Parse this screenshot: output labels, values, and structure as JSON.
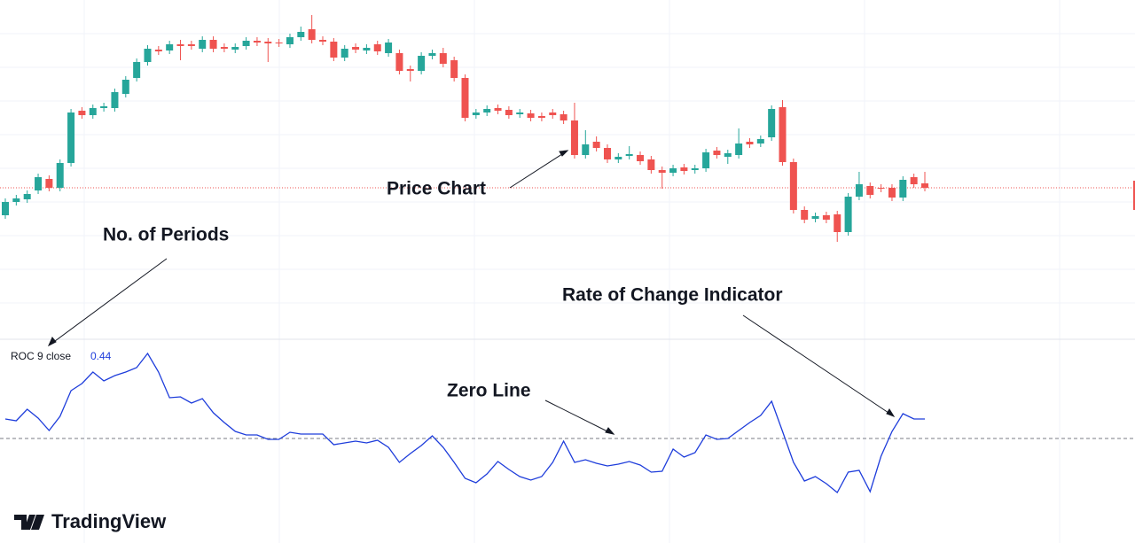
{
  "chart_data": [
    {
      "type": "candlestick",
      "ylim": [
        -80,
        300
      ],
      "up_color": "#26a69a",
      "down_color": "#ef5350",
      "grid": true,
      "candles": [
        {
          "open": 57,
          "high": 76,
          "low": 53,
          "close": 72
        },
        {
          "open": 72,
          "high": 80,
          "low": 68,
          "close": 76
        },
        {
          "open": 75,
          "high": 85,
          "low": 71,
          "close": 81
        },
        {
          "open": 85,
          "high": 104,
          "low": 81,
          "close": 100
        },
        {
          "open": 98,
          "high": 102,
          "low": 84,
          "close": 88
        },
        {
          "open": 88,
          "high": 120,
          "low": 84,
          "close": 116
        },
        {
          "open": 116,
          "high": 177,
          "low": 112,
          "close": 173
        },
        {
          "open": 175,
          "high": 179,
          "low": 166,
          "close": 170
        },
        {
          "open": 170,
          "high": 182,
          "low": 166,
          "close": 178
        },
        {
          "open": 178,
          "high": 184,
          "low": 174,
          "close": 180
        },
        {
          "open": 178,
          "high": 200,
          "low": 174,
          "close": 196
        },
        {
          "open": 194,
          "high": 214,
          "low": 190,
          "close": 210
        },
        {
          "open": 212,
          "high": 234,
          "low": 208,
          "close": 230
        },
        {
          "open": 230,
          "high": 249,
          "low": 226,
          "close": 245
        },
        {
          "open": 244,
          "high": 248,
          "low": 238,
          "close": 242
        },
        {
          "open": 243,
          "high": 254,
          "low": 239,
          "close": 250
        },
        {
          "open": 250,
          "high": 255,
          "low": 232,
          "close": 248
        },
        {
          "open": 250,
          "high": 254,
          "low": 244,
          "close": 248
        },
        {
          "open": 245,
          "high": 259,
          "low": 241,
          "close": 255
        },
        {
          "open": 255,
          "high": 259,
          "low": 241,
          "close": 245
        },
        {
          "open": 247,
          "high": 251,
          "low": 241,
          "close": 245
        },
        {
          "open": 244,
          "high": 251,
          "low": 240,
          "close": 247
        },
        {
          "open": 248,
          "high": 258,
          "low": 244,
          "close": 254
        },
        {
          "open": 254,
          "high": 258,
          "low": 248,
          "close": 252
        },
        {
          "open": 253,
          "high": 257,
          "low": 230,
          "close": 251
        },
        {
          "open": 252,
          "high": 256,
          "low": 247,
          "close": 251
        },
        {
          "open": 250,
          "high": 262,
          "low": 246,
          "close": 258
        },
        {
          "open": 258,
          "high": 270,
          "low": 254,
          "close": 264
        },
        {
          "open": 267,
          "high": 283,
          "low": 251,
          "close": 255
        },
        {
          "open": 255,
          "high": 259,
          "low": 249,
          "close": 253
        },
        {
          "open": 253,
          "high": 257,
          "low": 231,
          "close": 235
        },
        {
          "open": 235,
          "high": 249,
          "low": 231,
          "close": 245
        },
        {
          "open": 247,
          "high": 251,
          "low": 240,
          "close": 244
        },
        {
          "open": 243,
          "high": 250,
          "low": 239,
          "close": 246
        },
        {
          "open": 250,
          "high": 254,
          "low": 238,
          "close": 242
        },
        {
          "open": 240,
          "high": 256,
          "low": 236,
          "close": 252
        },
        {
          "open": 240,
          "high": 244,
          "low": 216,
          "close": 220
        },
        {
          "open": 222,
          "high": 226,
          "low": 208,
          "close": 220
        },
        {
          "open": 220,
          "high": 241,
          "low": 216,
          "close": 237
        },
        {
          "open": 237,
          "high": 244,
          "low": 233,
          "close": 240
        },
        {
          "open": 240,
          "high": 246,
          "low": 224,
          "close": 228
        },
        {
          "open": 232,
          "high": 236,
          "low": 208,
          "close": 212
        },
        {
          "open": 212,
          "high": 216,
          "low": 163,
          "close": 167
        },
        {
          "open": 170,
          "high": 177,
          "low": 166,
          "close": 173
        },
        {
          "open": 173,
          "high": 181,
          "low": 169,
          "close": 177
        },
        {
          "open": 178,
          "high": 182,
          "low": 171,
          "close": 175
        },
        {
          "open": 176,
          "high": 180,
          "low": 166,
          "close": 170
        },
        {
          "open": 171,
          "high": 177,
          "low": 167,
          "close": 173
        },
        {
          "open": 172,
          "high": 176,
          "low": 163,
          "close": 167
        },
        {
          "open": 169,
          "high": 173,
          "low": 163,
          "close": 167
        },
        {
          "open": 173,
          "high": 177,
          "low": 166,
          "close": 170
        },
        {
          "open": 171,
          "high": 175,
          "low": 160,
          "close": 164
        },
        {
          "open": 164,
          "high": 184,
          "low": 121,
          "close": 125
        },
        {
          "open": 125,
          "high": 153,
          "low": 121,
          "close": 137
        },
        {
          "open": 140,
          "high": 146,
          "low": 129,
          "close": 133
        },
        {
          "open": 133,
          "high": 137,
          "low": 116,
          "close": 120
        },
        {
          "open": 120,
          "high": 127,
          "low": 116,
          "close": 123
        },
        {
          "open": 124,
          "high": 135,
          "low": 120,
          "close": 126
        },
        {
          "open": 125,
          "high": 129,
          "low": 114,
          "close": 118
        },
        {
          "open": 120,
          "high": 124,
          "low": 104,
          "close": 108
        },
        {
          "open": 108,
          "high": 112,
          "low": 87,
          "close": 105
        },
        {
          "open": 105,
          "high": 114,
          "low": 101,
          "close": 110
        },
        {
          "open": 111,
          "high": 115,
          "low": 103,
          "close": 107
        },
        {
          "open": 108,
          "high": 114,
          "low": 104,
          "close": 110
        },
        {
          "open": 110,
          "high": 132,
          "low": 106,
          "close": 128
        },
        {
          "open": 130,
          "high": 134,
          "low": 121,
          "close": 125
        },
        {
          "open": 123,
          "high": 131,
          "low": 115,
          "close": 127
        },
        {
          "open": 125,
          "high": 155,
          "low": 121,
          "close": 138
        },
        {
          "open": 140,
          "high": 144,
          "low": 133,
          "close": 137
        },
        {
          "open": 138,
          "high": 147,
          "low": 134,
          "close": 143
        },
        {
          "open": 145,
          "high": 181,
          "low": 141,
          "close": 177
        },
        {
          "open": 179,
          "high": 187,
          "low": 113,
          "close": 117
        },
        {
          "open": 117,
          "high": 121,
          "low": 59,
          "close": 63
        },
        {
          "open": 63,
          "high": 67,
          "low": 48,
          "close": 52
        },
        {
          "open": 53,
          "high": 60,
          "low": 49,
          "close": 56
        },
        {
          "open": 57,
          "high": 61,
          "low": 48,
          "close": 52
        },
        {
          "open": 58,
          "high": 62,
          "low": 27,
          "close": 38
        },
        {
          "open": 38,
          "high": 82,
          "low": 34,
          "close": 78
        },
        {
          "open": 78,
          "high": 106,
          "low": 74,
          "close": 92
        },
        {
          "open": 90,
          "high": 94,
          "low": 76,
          "close": 80
        },
        {
          "open": 88,
          "high": 92,
          "low": 83,
          "close": 87
        },
        {
          "open": 88,
          "high": 92,
          "low": 73,
          "close": 77
        },
        {
          "open": 77,
          "high": 101,
          "low": 73,
          "close": 97
        },
        {
          "open": 100,
          "high": 104,
          "low": 88,
          "close": 92
        },
        {
          "open": 93,
          "high": 106,
          "low": 84,
          "close": 88
        }
      ]
    },
    {
      "type": "line",
      "name": "ROC 9 close",
      "color": "#1e3ddb",
      "ylim": [
        -2.36,
        2.24
      ],
      "zero_line": 0,
      "values": [
        0.44,
        0.4,
        0.66,
        0.46,
        0.18,
        0.5,
        1.08,
        1.24,
        1.5,
        1.3,
        1.42,
        1.5,
        1.6,
        1.92,
        1.5,
        0.92,
        0.94,
        0.8,
        0.9,
        0.58,
        0.36,
        0.16,
        0.08,
        0.08,
        -0.02,
        -0.02,
        0.14,
        0.1,
        0.1,
        0.1,
        -0.14,
        -0.1,
        -0.06,
        -0.1,
        -0.04,
        -0.2,
        -0.54,
        -0.34,
        -0.16,
        0.06,
        -0.2,
        -0.54,
        -0.9,
        -1,
        -0.8,
        -0.52,
        -0.7,
        -0.86,
        -0.94,
        -0.86,
        -0.54,
        -0.06,
        -0.54,
        -0.48,
        -0.56,
        -0.62,
        -0.58,
        -0.52,
        -0.6,
        -0.76,
        -0.74,
        -0.24,
        -0.42,
        -0.32,
        0.08,
        -0.02,
        0,
        0.18,
        0.36,
        0.52,
        0.84,
        0.16,
        -0.54,
        -0.96,
        -0.86,
        -1.02,
        -1.22,
        -0.76,
        -0.72,
        -1.2,
        -0.4,
        0.16,
        0.56,
        0.44,
        0.44
      ]
    }
  ],
  "annotations": [
    "No. of Periods",
    "Price Chart",
    "Rate of Change Indicator",
    "Zero Line"
  ],
  "logo": "TradingView"
}
